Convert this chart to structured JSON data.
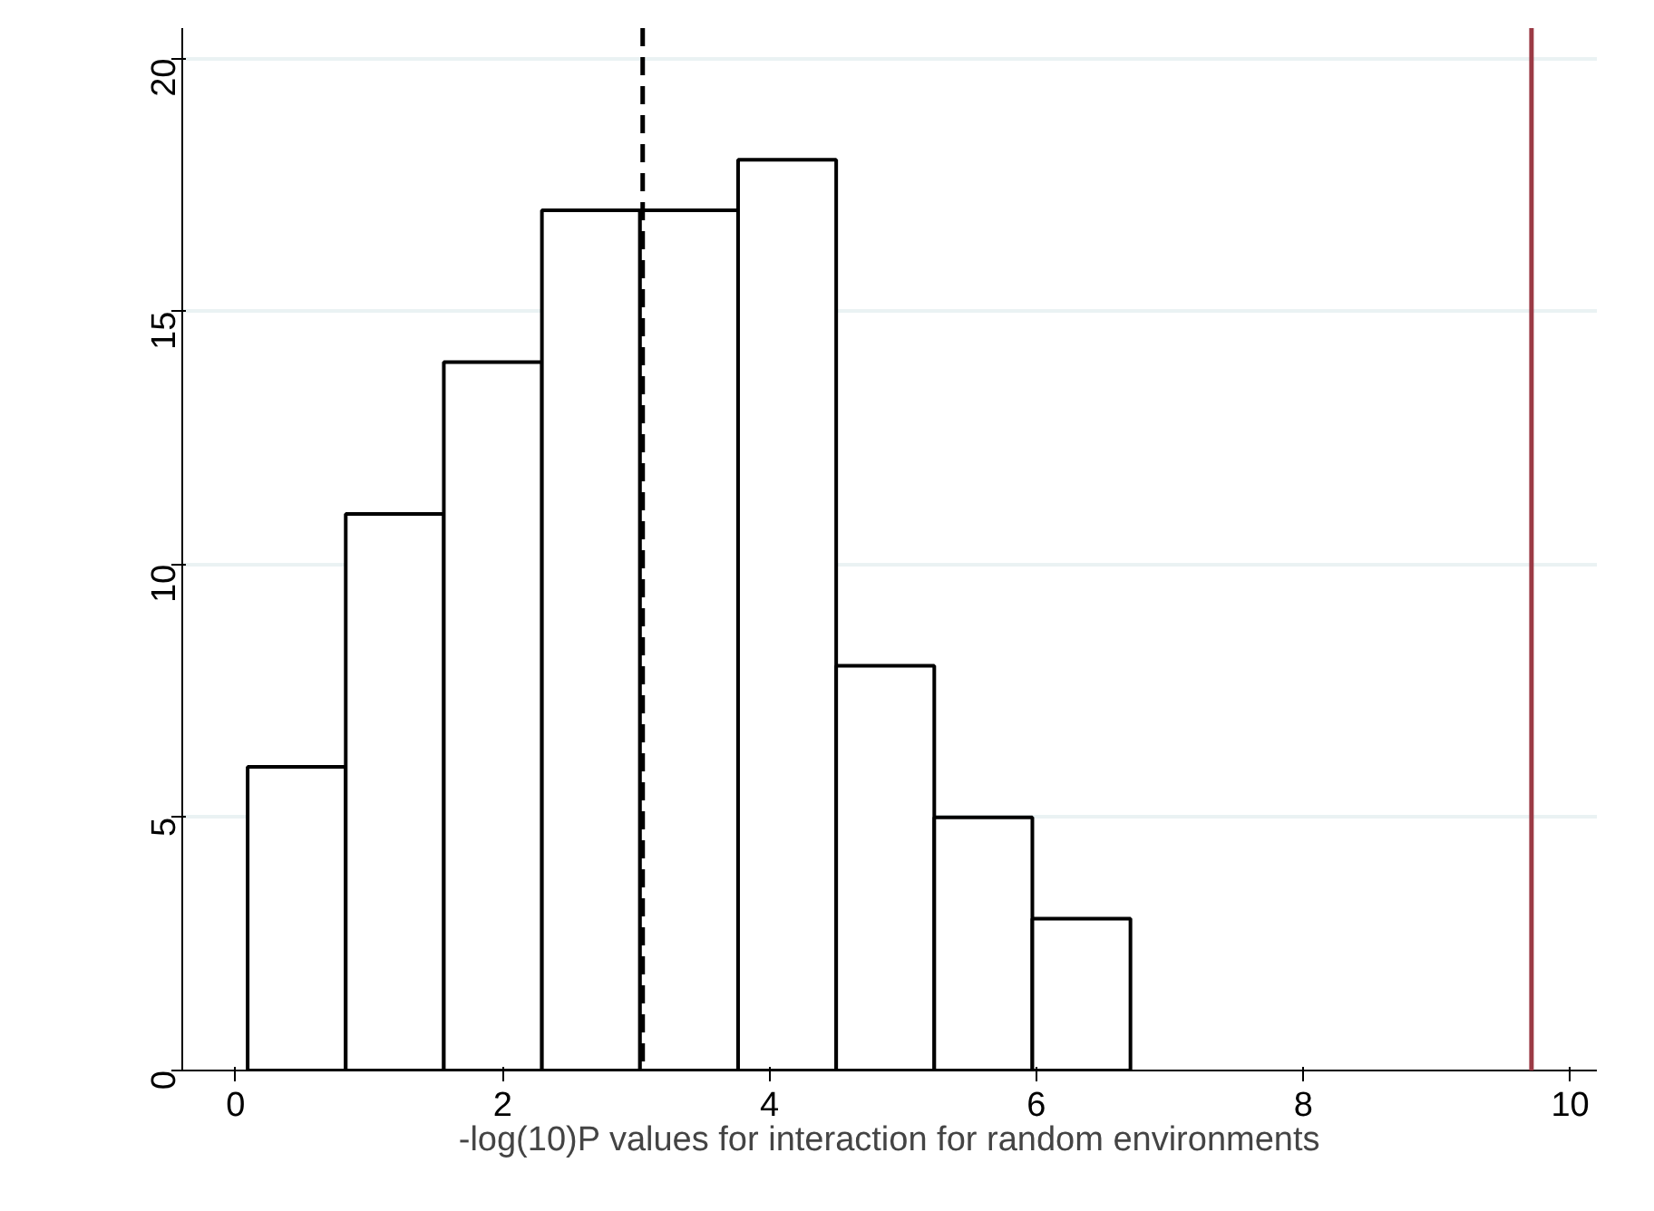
{
  "chart_data": {
    "type": "histogram",
    "xlabel": "-log(10)P values for interaction for random environments",
    "bins": [
      0.09,
      0.825,
      1.56,
      2.295,
      3.03,
      3.765,
      4.5,
      5.235,
      5.97,
      6.705
    ],
    "values": [
      6,
      11,
      14,
      17,
      17,
      18,
      8,
      5,
      3
    ],
    "color": "#ffffff",
    "xlim": [
      -0.4,
      10.2
    ],
    "xticks": [
      0,
      2,
      4,
      6,
      8,
      10
    ],
    "ylim": [
      0,
      20.6
    ],
    "yticks": [
      0,
      5,
      10,
      15,
      20
    ],
    "grid": "y",
    "ref_lines": [
      {
        "axis": "x",
        "value": 3.05,
        "color": "#000000",
        "line_style": "dashed"
      },
      {
        "axis": "x",
        "value": 9.71,
        "color": "#9b3a45",
        "line_style": "solid"
      }
    ]
  }
}
